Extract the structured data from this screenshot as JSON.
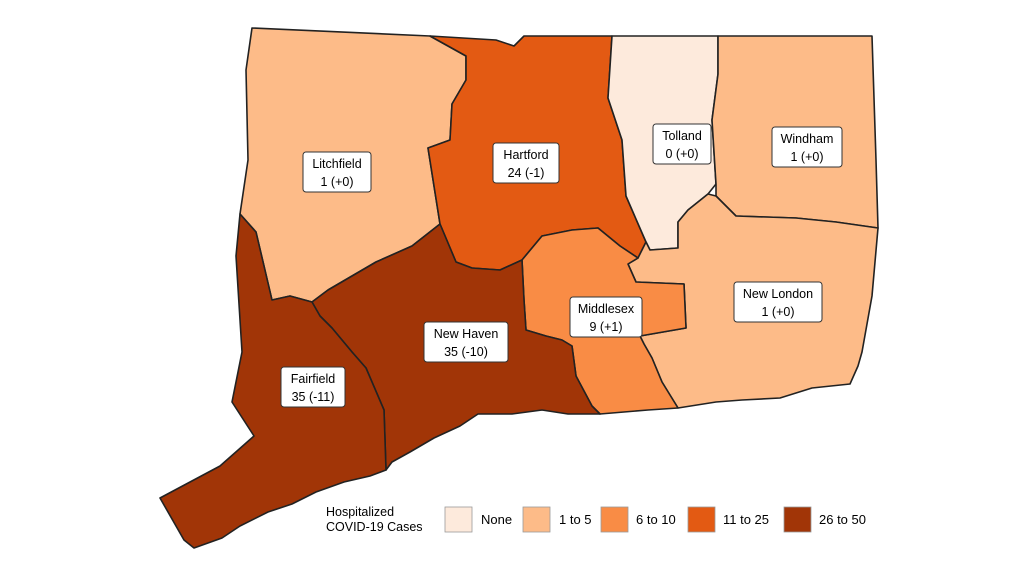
{
  "map": {
    "legend": {
      "title_line1": "Hospitalized",
      "title_line2": "COVID-19 Cases",
      "bins": [
        {
          "label": "None",
          "color": "#fdeadc"
        },
        {
          "label": "1 to 5",
          "color": "#fdbb88"
        },
        {
          "label": "6 to 10",
          "color": "#f98c45"
        },
        {
          "label": "11 to 25",
          "color": "#e35a13"
        },
        {
          "label": "26 to 50",
          "color": "#a13507"
        }
      ]
    },
    "counties": [
      {
        "name": "Litchfield",
        "value": "1 (+0)",
        "hospitalized": 1,
        "change": 0,
        "color": "#fdbb88"
      },
      {
        "name": "Hartford",
        "value": "24 (-1)",
        "hospitalized": 24,
        "change": -1,
        "color": "#e35a13"
      },
      {
        "name": "Tolland",
        "value": "0 (+0)",
        "hospitalized": 0,
        "change": 0,
        "color": "#fdeadc"
      },
      {
        "name": "Windham",
        "value": "1 (+0)",
        "hospitalized": 1,
        "change": 0,
        "color": "#fdbb88"
      },
      {
        "name": "New London",
        "value": "1 (+0)",
        "hospitalized": 1,
        "change": 0,
        "color": "#fdbb88"
      },
      {
        "name": "Middlesex",
        "value": "9 (+1)",
        "hospitalized": 9,
        "change": 1,
        "color": "#f98c45"
      },
      {
        "name": "New Haven",
        "value": "35 (-10)",
        "hospitalized": 35,
        "change": -10,
        "color": "#a13507"
      },
      {
        "name": "Fairfield",
        "value": "35 (-11)",
        "hospitalized": 35,
        "change": -11,
        "color": "#a13507"
      }
    ]
  }
}
